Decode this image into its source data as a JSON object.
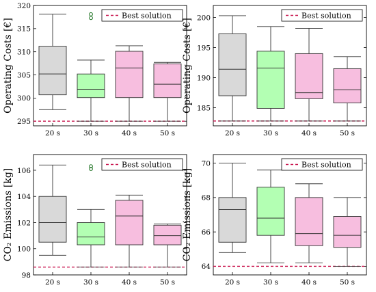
{
  "chart_data": [
    {
      "type": "box",
      "ylabel": "Operating Costs [€]",
      "categories": [
        "20 s",
        "30 s",
        "40 s",
        "50 s"
      ],
      "ylim": [
        294,
        320
      ],
      "yticks": [
        "295",
        "300",
        "305",
        "310",
        "315",
        "320"
      ],
      "ytick_values": [
        295,
        300,
        305,
        310,
        315,
        320
      ],
      "grid": false,
      "legend_position": "top-right",
      "legend": [
        "Best solution"
      ],
      "best_solution": 295,
      "boxes": [
        {
          "min": 297.5,
          "q1": 300.7,
          "median": 305.2,
          "q3": 311.2,
          "max": 318.1,
          "outliers": [],
          "color": "#d9d9d9"
        },
        {
          "min": 295,
          "q1": 300.1,
          "median": 301.9,
          "q3": 305.2,
          "max": 308.2,
          "outliers": [
            317.3,
            318.1
          ],
          "color": "#b3ffb3"
        },
        {
          "min": 295,
          "q1": 300.1,
          "median": 306.5,
          "q3": 310.1,
          "max": 311.3,
          "outliers": [],
          "color": "#f7bedf"
        },
        {
          "min": 295,
          "q1": 300.1,
          "median": 303.0,
          "q3": 307.4,
          "max": 307.7,
          "outliers": [],
          "color": "#f7bedf"
        }
      ]
    },
    {
      "type": "box",
      "ylabel": "Operating Costs [€]",
      "categories": [
        "20 s",
        "30 s",
        "40 s",
        "50 s"
      ],
      "ylim": [
        182,
        202
      ],
      "yticks": [
        "185",
        "190",
        "195",
        "200"
      ],
      "ytick_values": [
        185,
        190,
        195,
        200
      ],
      "grid": false,
      "legend_position": "top-right",
      "legend": [
        "Best solution"
      ],
      "best_solution": 182.8,
      "boxes": [
        {
          "min": 182.8,
          "q1": 187.0,
          "median": 191.4,
          "q3": 197.3,
          "max": 200.3,
          "outliers": [],
          "color": "#d9d9d9"
        },
        {
          "min": 182.8,
          "q1": 184.9,
          "median": 191.6,
          "q3": 194.4,
          "max": 198.5,
          "outliers": [],
          "color": "#b3ffb3"
        },
        {
          "min": 182.8,
          "q1": 186.5,
          "median": 187.5,
          "q3": 194.0,
          "max": 198.2,
          "outliers": [],
          "color": "#f7bedf"
        },
        {
          "min": 182.8,
          "q1": 185.8,
          "median": 188.0,
          "q3": 191.5,
          "max": 193.5,
          "outliers": [],
          "color": "#f7bedf"
        }
      ]
    },
    {
      "type": "box",
      "ylabel": "CO₂ Emissions [kg]",
      "categories": [
        "20 s",
        "30 s",
        "40 s",
        "50 s"
      ],
      "ylim": [
        98,
        107.2
      ],
      "yticks": [
        "98",
        "100",
        "102",
        "104",
        "106"
      ],
      "ytick_values": [
        98,
        100,
        102,
        104,
        106
      ],
      "grid": false,
      "legend_position": "top-right",
      "legend": [
        "Best solution"
      ],
      "best_solution": 98.6,
      "boxes": [
        {
          "min": 99.5,
          "q1": 100.5,
          "median": 102.0,
          "q3": 104.0,
          "max": 106.4,
          "outliers": [],
          "color": "#d9d9d9"
        },
        {
          "min": 98.6,
          "q1": 100.3,
          "median": 100.9,
          "q3": 102.0,
          "max": 103.0,
          "outliers": [
            106.1,
            106.3
          ],
          "color": "#b3ffb3"
        },
        {
          "min": 98.6,
          "q1": 100.3,
          "median": 102.5,
          "q3": 103.7,
          "max": 104.1,
          "outliers": [],
          "color": "#f7bedf"
        },
        {
          "min": 98.6,
          "q1": 100.3,
          "median": 101.0,
          "q3": 101.8,
          "max": 101.9,
          "outliers": [],
          "color": "#f7bedf"
        }
      ]
    },
    {
      "type": "box",
      "ylabel": "CO₂ Emissions [kg]",
      "categories": [
        "20 s",
        "30 s",
        "40 s",
        "50 s"
      ],
      "ylim": [
        63.5,
        70.5
      ],
      "yticks": [
        "64",
        "66",
        "68",
        "70"
      ],
      "ytick_values": [
        64,
        66,
        68,
        70
      ],
      "grid": false,
      "legend_position": "top-right",
      "legend": [
        "Best solution"
      ],
      "best_solution": 64.0,
      "boxes": [
        {
          "min": 64.8,
          "q1": 65.4,
          "median": 67.3,
          "q3": 68.0,
          "max": 70.0,
          "outliers": [],
          "color": "#d9d9d9"
        },
        {
          "min": 64.2,
          "q1": 65.8,
          "median": 66.8,
          "q3": 68.6,
          "max": 69.6,
          "outliers": [],
          "color": "#b3ffb3"
        },
        {
          "min": 64.2,
          "q1": 65.2,
          "median": 65.9,
          "q3": 68.0,
          "max": 68.8,
          "outliers": [],
          "color": "#f7bedf"
        },
        {
          "min": 64.0,
          "q1": 65.1,
          "median": 65.8,
          "q3": 66.9,
          "max": 68.0,
          "outliers": [],
          "color": "#f7bedf"
        }
      ]
    }
  ],
  "colors": {
    "best_line": "#c8104a",
    "outlier": "#2e7d32",
    "box_stroke": "#333333"
  }
}
